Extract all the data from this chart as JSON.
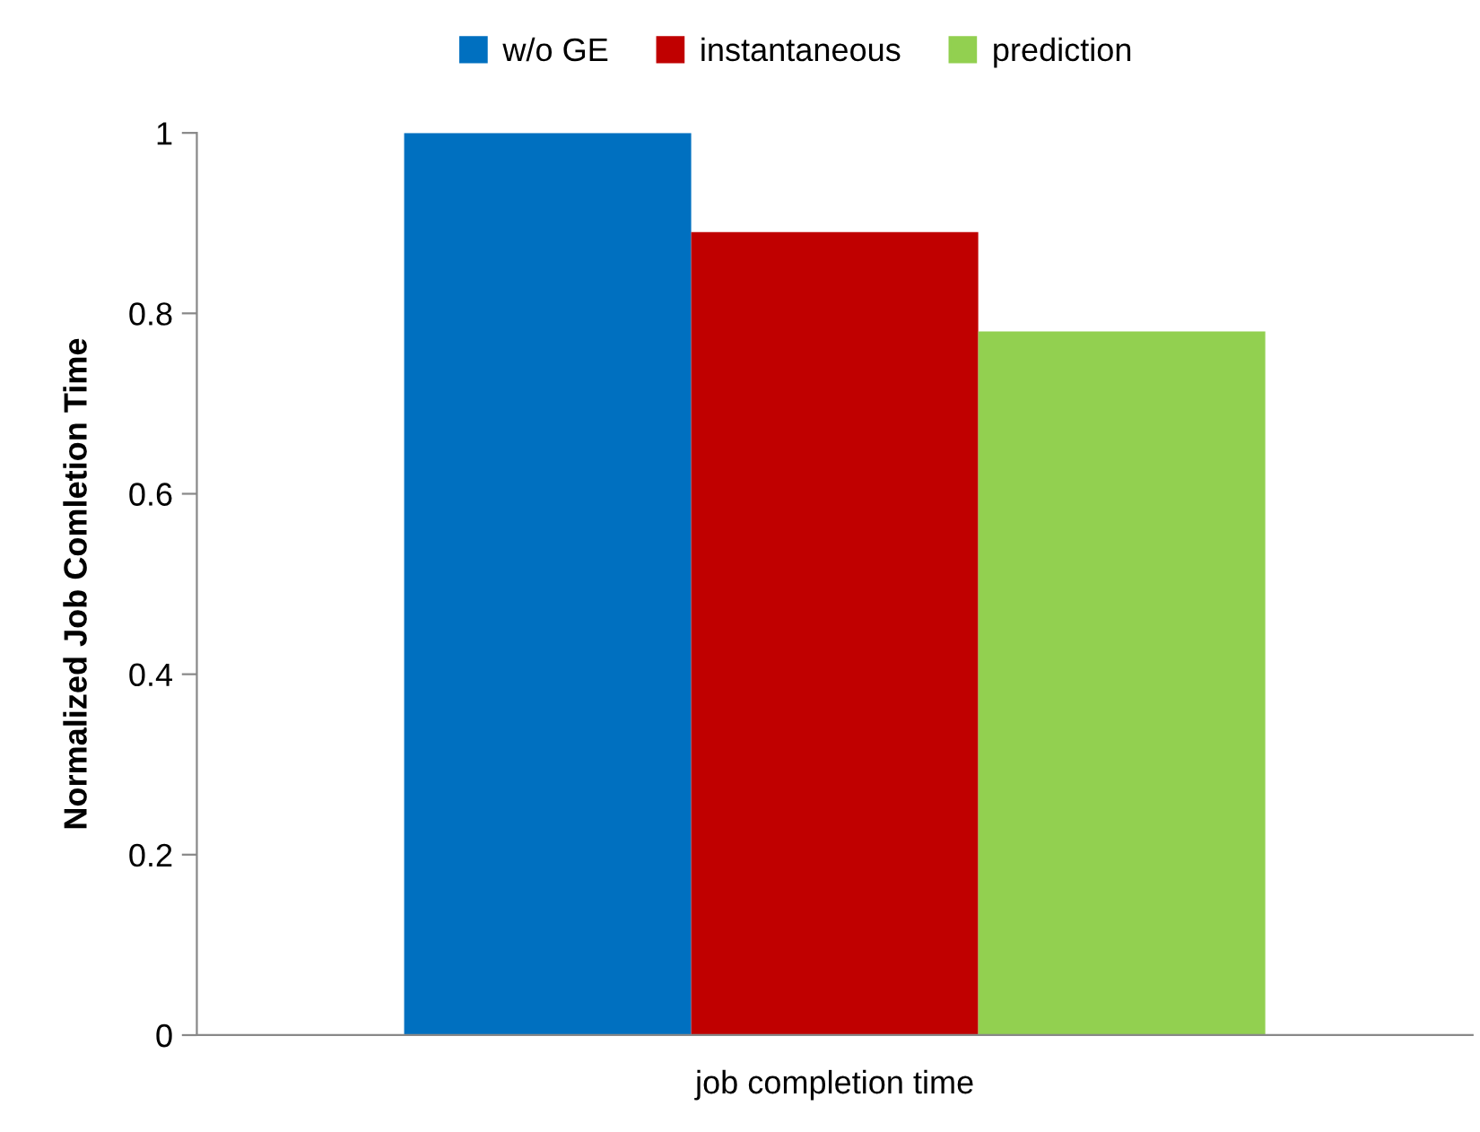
{
  "chart_data": {
    "type": "bar",
    "categories": [
      "job completion time"
    ],
    "ylabel": "Normalized Job Comletion Time",
    "series": [
      {
        "name": "w/o GE",
        "color": "#0070c0",
        "values": [
          1.0
        ]
      },
      {
        "name": "instantaneous",
        "color": "#c00000",
        "values": [
          0.89
        ]
      },
      {
        "name": "prediction",
        "color": "#92d050",
        "values": [
          0.78
        ]
      }
    ],
    "ylim": [
      0,
      1
    ],
    "yticks": [
      0,
      0.2,
      0.4,
      0.6,
      0.8,
      1
    ],
    "grid": false,
    "legend": "top"
  }
}
